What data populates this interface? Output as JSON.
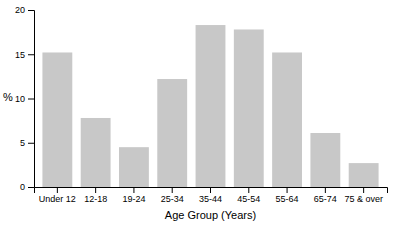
{
  "chart_data": {
    "type": "bar",
    "categories": [
      "Under 12",
      "12-18",
      "19-24",
      "25-34",
      "35-44",
      "45-54",
      "55-64",
      "65-74",
      "75 & over"
    ],
    "values": [
      15.2,
      7.8,
      4.5,
      12.2,
      18.3,
      17.8,
      15.2,
      6.1,
      2.7
    ],
    "color": "#c8c8c8",
    "xlabel": "Age Group (Years)",
    "ylabel": "%",
    "ylim": [
      0,
      20
    ],
    "yticks": [
      0,
      5,
      10,
      15,
      20
    ],
    "grid": false
  }
}
